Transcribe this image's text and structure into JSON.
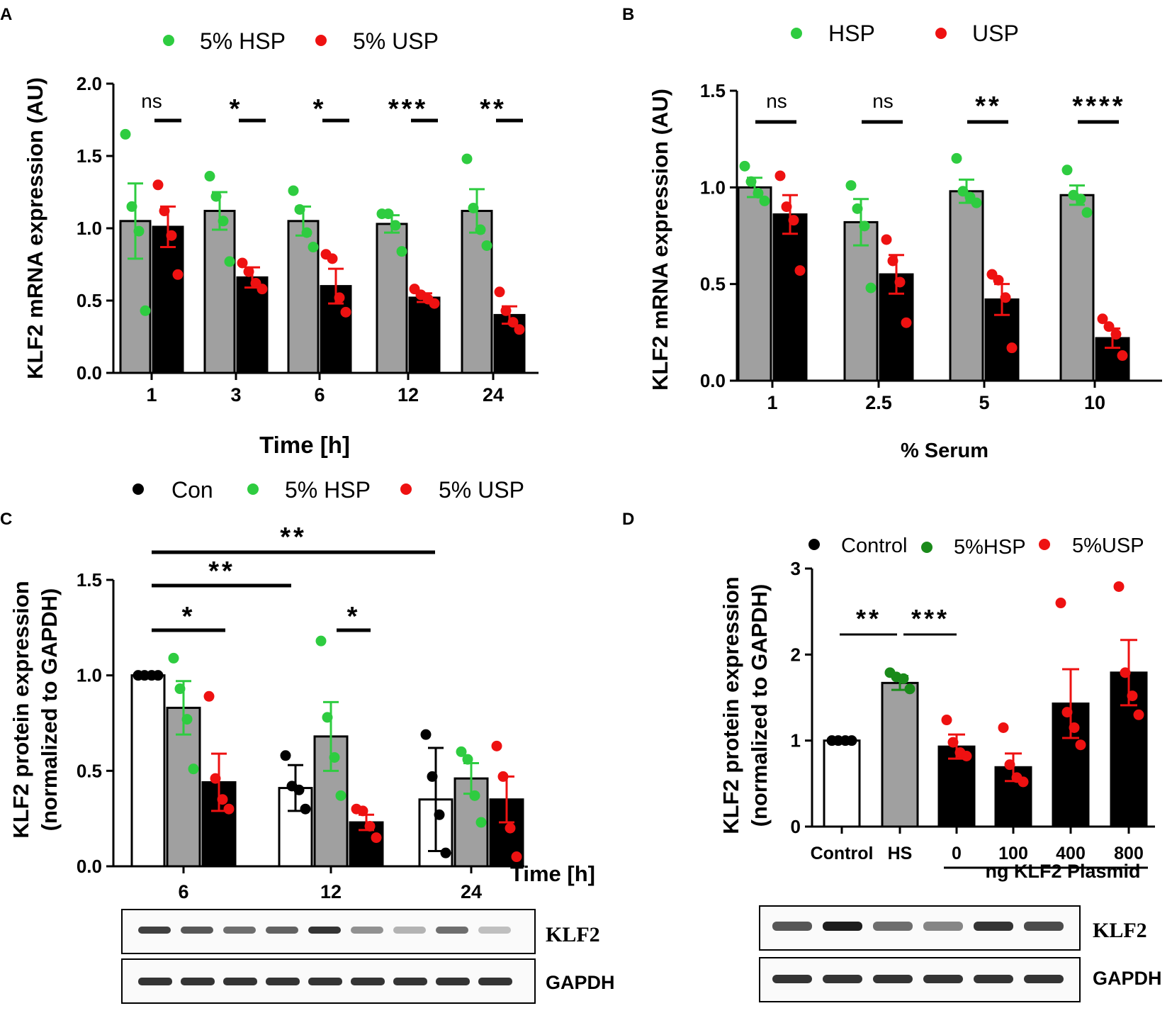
{
  "colors": {
    "hs": "#2ecc40",
    "us": "#ee1111",
    "ctl": "#000000",
    "hs_dark": "#1a8a1a",
    "bar_hs": "#a0a0a0",
    "bar_us": "#000000",
    "bar_ctl": "#ffffff"
  },
  "chart_data": [
    {
      "panel": "A",
      "type": "bar",
      "title": "",
      "legend": [
        "5% HSP",
        "5% USP"
      ],
      "xlabel": "Time [h]",
      "ylabel": "KLF2 mRNA expression (AU)",
      "ylim": [
        0,
        2.0
      ],
      "yticks": [
        "0.0",
        "0.5",
        "1.0",
        "1.5",
        "2.0"
      ],
      "categories": [
        "1",
        "3",
        "6",
        "12",
        "24"
      ],
      "series": [
        {
          "name": "5% HSP",
          "values": [
            1.05,
            1.12,
            1.05,
            1.03,
            1.12
          ],
          "err": [
            0.26,
            0.13,
            0.1,
            0.06,
            0.15
          ],
          "points": [
            [
              1.65,
              1.15,
              0.98,
              0.43
            ],
            [
              1.36,
              1.22,
              1.05,
              0.77
            ],
            [
              1.26,
              1.13,
              0.97,
              0.87
            ],
            [
              1.1,
              1.1,
              1.02,
              0.84
            ],
            [
              1.48,
              1.14,
              0.99,
              0.88
            ]
          ]
        },
        {
          "name": "5% USP",
          "values": [
            1.01,
            0.66,
            0.6,
            0.52,
            0.4
          ],
          "err": [
            0.14,
            0.07,
            0.12,
            0.03,
            0.06
          ],
          "points": [
            [
              1.3,
              1.12,
              0.95,
              0.68
            ],
            [
              0.76,
              0.7,
              0.62,
              0.58
            ],
            [
              0.82,
              0.79,
              0.52,
              0.42
            ],
            [
              0.58,
              0.54,
              0.51,
              0.48
            ],
            [
              0.56,
              0.43,
              0.35,
              0.3
            ]
          ]
        }
      ],
      "significance": [
        "ns",
        "*",
        "*",
        "***",
        "**"
      ]
    },
    {
      "panel": "B",
      "type": "bar",
      "legend": [
        "HSP",
        "USP"
      ],
      "xlabel": "% Serum",
      "ylabel": "KLF2 mRNA expression (AU)",
      "ylim": [
        0,
        1.5
      ],
      "yticks": [
        "0.0",
        "0.5",
        "1.0",
        "1.5"
      ],
      "categories": [
        "1",
        "2.5",
        "5",
        "10"
      ],
      "series": [
        {
          "name": "HSP",
          "values": [
            1.0,
            0.82,
            0.98,
            0.96
          ],
          "err": [
            0.05,
            0.12,
            0.06,
            0.05
          ],
          "points": [
            [
              1.11,
              1.03,
              0.97,
              0.93
            ],
            [
              1.01,
              0.89,
              0.8,
              0.48
            ],
            [
              1.15,
              0.98,
              0.95,
              0.92
            ],
            [
              1.09,
              0.96,
              0.94,
              0.87
            ]
          ]
        },
        {
          "name": "USP",
          "values": [
            0.86,
            0.55,
            0.42,
            0.22
          ],
          "err": [
            0.1,
            0.1,
            0.08,
            0.05
          ],
          "points": [
            [
              1.06,
              0.9,
              0.83,
              0.57
            ],
            [
              0.73,
              0.62,
              0.51,
              0.3
            ],
            [
              0.55,
              0.52,
              0.43,
              0.17
            ],
            [
              0.32,
              0.28,
              0.24,
              0.13
            ]
          ]
        }
      ],
      "significance": [
        "ns",
        "ns",
        "**",
        "****"
      ]
    },
    {
      "panel": "C",
      "type": "bar",
      "legend": [
        "Con",
        "5% HSP",
        "5% USP"
      ],
      "xlabel": "Time [h]",
      "ylabel": "KLF2 protein expression",
      "ylabel2": "(normalized to GAPDH)",
      "ylim": [
        0,
        1.5
      ],
      "yticks": [
        "0.0",
        "0.5",
        "1.0",
        "1.5"
      ],
      "categories": [
        "6",
        "12",
        "24"
      ],
      "series": [
        {
          "name": "Con",
          "values": [
            1.0,
            0.41,
            0.35
          ],
          "err": [
            0.0,
            0.12,
            0.27
          ],
          "points": [
            [
              1.0,
              1.0,
              1.0,
              1.0
            ],
            [
              0.58,
              0.42,
              0.4,
              0.3
            ],
            [
              0.69,
              0.47,
              0.27,
              0.07
            ]
          ]
        },
        {
          "name": "5% HSP",
          "values": [
            0.83,
            0.68,
            0.46
          ],
          "err": [
            0.14,
            0.18,
            0.08
          ],
          "points": [
            [
              1.09,
              0.93,
              0.77,
              0.51
            ],
            [
              1.18,
              0.78,
              0.57,
              0.37
            ],
            [
              0.6,
              0.56,
              0.37,
              0.23
            ]
          ]
        },
        {
          "name": "5% USP",
          "values": [
            0.44,
            0.23,
            0.35
          ],
          "err": [
            0.15,
            0.04,
            0.12
          ],
          "points": [
            [
              0.89,
              0.46,
              0.35,
              0.3
            ],
            [
              0.3,
              0.29,
              0.21,
              0.15
            ],
            [
              0.63,
              0.47,
              0.2,
              0.05
            ]
          ]
        }
      ],
      "significance": [
        {
          "label": "*",
          "from": "6:Con",
          "to": "6:5% USP"
        },
        {
          "label": "**",
          "from": "6:Con",
          "to": "12:Con"
        },
        {
          "label": "**",
          "from": "6:Con",
          "to": "24:Con"
        },
        {
          "label": "*",
          "from": "12:5% HSP",
          "to": "12:5% USP"
        }
      ],
      "blot_labels": [
        "KLF2",
        "GAPDH"
      ]
    },
    {
      "panel": "D",
      "type": "bar",
      "legend": [
        "Control",
        "5%HSP",
        "5%USP"
      ],
      "xlabel": "ng KLF2 Plasmid",
      "ylabel": "KLF2 protein expression",
      "ylabel2": "(normalized to GAPDH)",
      "ylim": [
        0,
        3
      ],
      "yticks": [
        "0",
        "1",
        "2",
        "3"
      ],
      "categories": [
        "Control",
        "HS",
        "0",
        "100",
        "400",
        "800"
      ],
      "values": [
        1.0,
        1.67,
        0.93,
        0.69,
        1.43,
        1.79
      ],
      "err": [
        0.0,
        0.08,
        0.14,
        0.16,
        0.4,
        0.38
      ],
      "points": [
        [
          1.0,
          1.0,
          1.0,
          1.0
        ],
        [
          1.79,
          1.74,
          1.72,
          1.6
        ],
        [
          1.24,
          0.98,
          0.86,
          0.82
        ],
        [
          1.15,
          0.72,
          0.57,
          0.52
        ],
        [
          2.6,
          1.33,
          1.15,
          0.95
        ],
        [
          2.79,
          1.79,
          1.52,
          1.3
        ]
      ],
      "significance": [
        {
          "label": "**",
          "from": "Control",
          "to": "HS"
        },
        {
          "label": "***",
          "from": "HS",
          "to": "0"
        }
      ],
      "blot_labels": [
        "KLF2",
        "GAPDH"
      ]
    }
  ],
  "panel_labels": [
    "A",
    "B",
    "C",
    "D"
  ]
}
